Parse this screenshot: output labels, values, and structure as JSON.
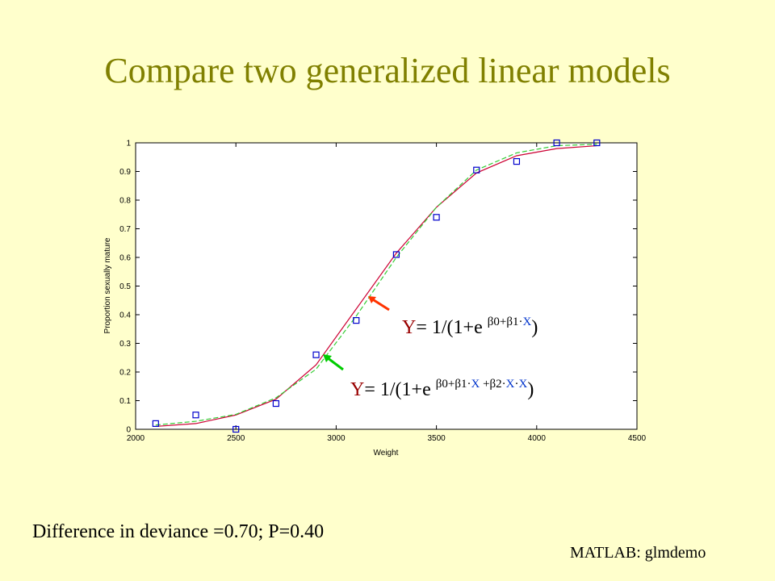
{
  "title": "Compare two generalized linear models",
  "chart_data": {
    "type": "scatter",
    "xlabel": "Weight",
    "ylabel": "Proportion sexually mature",
    "xlim": [
      2000,
      4500
    ],
    "ylim": [
      0,
      1
    ],
    "xticks": [
      "2000",
      "2500",
      "3000",
      "3500",
      "4000",
      "4500"
    ],
    "yticks": [
      "0",
      "0.1",
      "0.2",
      "0.3",
      "0.4",
      "0.5",
      "0.6",
      "0.7",
      "0.8",
      "0.9",
      "1"
    ],
    "grid": false,
    "series": [
      {
        "kind": "points",
        "color": "#0000CC",
        "x": [
          2100,
          2300,
          2500,
          2700,
          2900,
          3100,
          3300,
          3500,
          3700,
          3900,
          4100,
          4300
        ],
        "y": [
          0.02,
          0.05,
          0.0,
          0.09,
          0.26,
          0.38,
          0.61,
          0.74,
          0.905,
          0.935,
          1.0,
          1.0
        ]
      },
      {
        "kind": "line",
        "color": "#CC0033",
        "x": [
          2100,
          2300,
          2500,
          2700,
          2900,
          3100,
          3300,
          3500,
          3700,
          3900,
          4100,
          4300
        ],
        "y": [
          0.01,
          0.02,
          0.05,
          0.105,
          0.225,
          0.42,
          0.615,
          0.775,
          0.895,
          0.955,
          0.98,
          0.99
        ]
      },
      {
        "kind": "line",
        "color": "#33CC33",
        "dashed": true,
        "x": [
          2100,
          2300,
          2500,
          2700,
          2900,
          3100,
          3300,
          3500,
          3700,
          3900,
          4100,
          4300
        ],
        "y": [
          0.015,
          0.028,
          0.052,
          0.11,
          0.21,
          0.395,
          0.6,
          0.775,
          0.905,
          0.965,
          0.99,
          0.995
        ]
      }
    ]
  },
  "annotations": {
    "eq1": {
      "Y": "Y",
      "rest": "= 1/(1+e ",
      "sup1": "β0+β1",
      "dot": "·",
      "x": "X",
      "close": ")"
    },
    "eq2": {
      "Y": "Y",
      "rest": "= 1/(1+e ",
      "sup1": "β0+β1",
      "dot1": "·",
      "x1": "X",
      "sup2": " +β2",
      "dot2": "·",
      "x2": "X",
      "dot3": "·",
      "x3": "X",
      "close": ")"
    },
    "arrow1_color": "#FF3300",
    "arrow2_color": "#00CC00"
  },
  "footer": "Difference in deviance =0.70; P=0.40",
  "credit": "MATLAB: glmdemo"
}
